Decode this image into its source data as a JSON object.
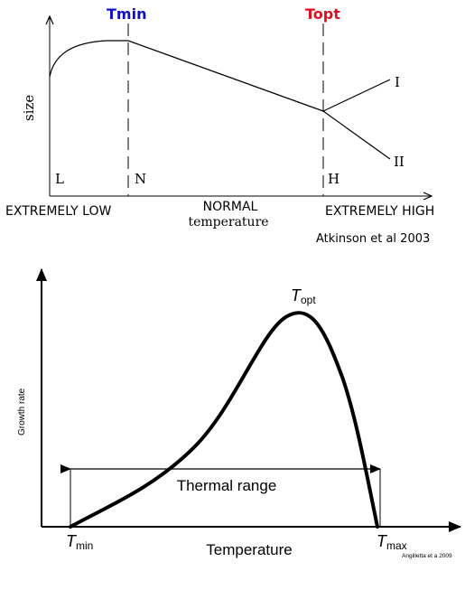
{
  "top_figure": {
    "labels": {
      "tmin": "Tmin",
      "topt": "Topt",
      "size": "size",
      "branch_i": "I",
      "branch_ii": "II",
      "l": "L",
      "n": "N",
      "h": "H",
      "extremely_low": "EXTREMELY LOW",
      "normal_line1": "NORMAL",
      "normal_line2": "temperature",
      "extremely_high": "EXTREMELY HIGH",
      "citation": "Atkinson et al 2003"
    },
    "colors": {
      "tmin": "#1010c8",
      "topt": "#e0101e"
    }
  },
  "bottom_figure": {
    "labels": {
      "topt_main": "T",
      "topt_sub": "opt",
      "ylabel": "Growth rate",
      "thermal_range": "Thermal range",
      "tmin_main": "T",
      "tmin_sub": "min",
      "xlabel": "Temperature",
      "tmax_main": "T",
      "tmax_sub": "max",
      "citation": "Angilletta et a 2009"
    }
  }
}
